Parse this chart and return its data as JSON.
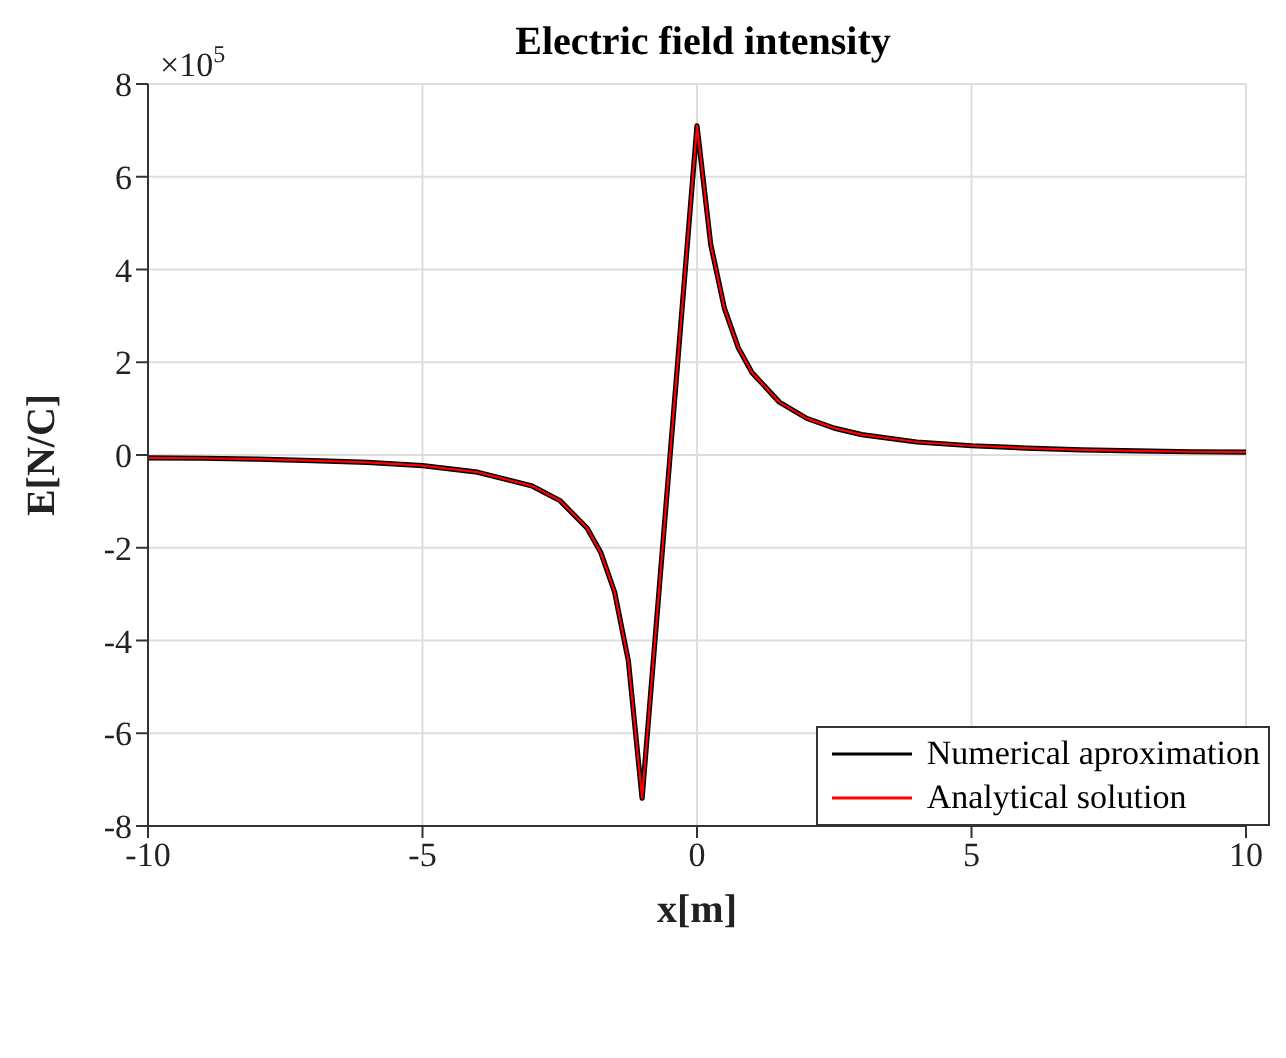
{
  "chart_data": {
    "type": "line",
    "title": "Electric field intensity",
    "xlabel": "x[m]",
    "ylabel": "E[N/C]",
    "annotations": [
      "×10$^{5}$"
    ],
    "x": [
      -10,
      -9,
      -8,
      -7,
      -6,
      -5,
      -4,
      -3,
      -2.5,
      -2,
      -1.75,
      -1.5,
      -1.25,
      -1,
      -0.5,
      0,
      0.25,
      0.5,
      0.75,
      1,
      1.5,
      2,
      2.5,
      3,
      4,
      5,
      6,
      7,
      8,
      9,
      10
    ],
    "series": [
      {
        "name": "Numerical aproximation",
        "color": "#000000",
        "values": [
          -0.06,
          -0.07,
          -0.09,
          -0.12,
          -0.16,
          -0.23,
          -0.37,
          -0.67,
          -0.98,
          -1.58,
          -2.11,
          -2.96,
          -4.44,
          -7.4,
          -0.15,
          7.1,
          4.54,
          3.16,
          2.32,
          1.78,
          1.14,
          0.79,
          0.58,
          0.44,
          0.28,
          0.2,
          0.15,
          0.11,
          0.09,
          0.07,
          0.06
        ]
      },
      {
        "name": "Analytical solution",
        "color": "#ff0000",
        "values": [
          -0.06,
          -0.07,
          -0.09,
          -0.12,
          -0.16,
          -0.23,
          -0.37,
          -0.67,
          -0.98,
          -1.58,
          -2.11,
          -2.96,
          -4.44,
          -7.4,
          -0.15,
          7.1,
          4.54,
          3.16,
          2.32,
          1.78,
          1.14,
          0.79,
          0.58,
          0.44,
          0.28,
          0.2,
          0.15,
          0.11,
          0.09,
          0.07,
          0.06
        ]
      }
    ],
    "xlim": [
      -10,
      10
    ],
    "xticks": [
      -10,
      -5,
      0,
      5,
      10
    ],
    "ylim": [
      -8,
      8
    ],
    "yticks": [
      -8,
      -6,
      -4,
      -2,
      0,
      2,
      4,
      6,
      8
    ],
    "grid": true,
    "legend": "bottom right",
    "marker": "none",
    "line_style": "solid"
  }
}
